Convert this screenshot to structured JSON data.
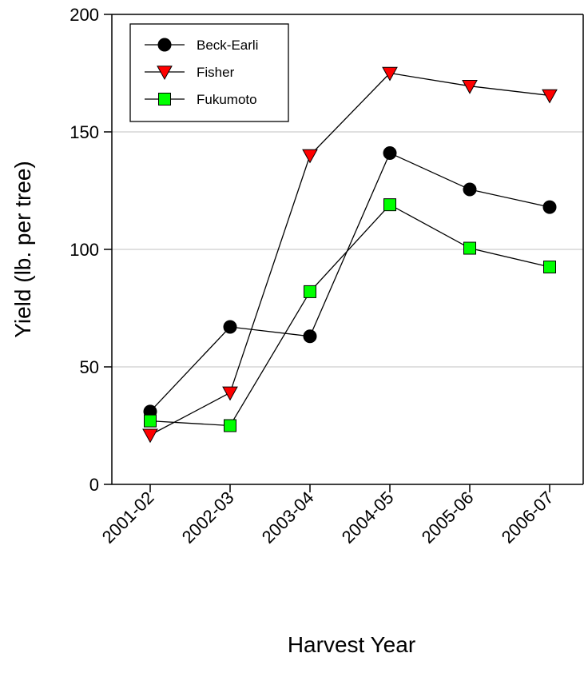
{
  "chart_data": {
    "type": "line",
    "title": "",
    "xlabel": "Harvest Year",
    "ylabel": "Yield (lb. per tree)",
    "categories": [
      "2001-02",
      "2002-03",
      "2003-04",
      "2004-05",
      "2005-06",
      "2006-07"
    ],
    "ylim": [
      0,
      200
    ],
    "yticks": [
      0,
      50,
      100,
      150,
      200
    ],
    "grid": "horizontal",
    "legend_position": "top-left",
    "series": [
      {
        "name": "Beck-Earli",
        "marker": "circle",
        "color": "#000000",
        "values": [
          31,
          67,
          63,
          141,
          125.5,
          118
        ]
      },
      {
        "name": "Fisher",
        "marker": "triangle-down",
        "color": "#ff0000",
        "values": [
          21,
          39,
          140,
          175,
          169.5,
          165.5
        ]
      },
      {
        "name": "Fukumoto",
        "marker": "square",
        "color": "#00ff00",
        "values": [
          27,
          25,
          82,
          119,
          100.5,
          92.5
        ]
      }
    ]
  }
}
